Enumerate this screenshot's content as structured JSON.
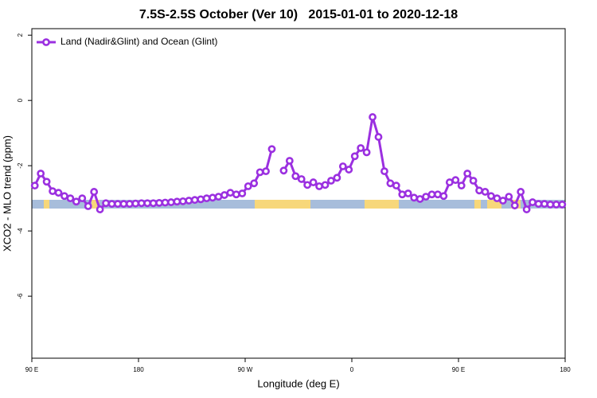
{
  "chart_data": {
    "type": "line",
    "title": "7.5S-2.5S October (Ver 10)   2015-01-01 to 2020-12-18",
    "x_label": "Longitude (deg E)",
    "y_label": "XCO2 - MLO trend (ppm)",
    "x": [
      92.5,
      97.5,
      102.5,
      107.5,
      112.5,
      117.5,
      122.5,
      127.5,
      132.5,
      137.5,
      142.5,
      147.5,
      152.5,
      157.5,
      162.5,
      167.5,
      172.5,
      177.5,
      182.5,
      187.5,
      192.5,
      197.5,
      202.5,
      207.5,
      212.5,
      217.5,
      222.5,
      227.5,
      232.5,
      237.5,
      242.5,
      247.5,
      252.5,
      257.5,
      262.5,
      267.5,
      272.5,
      277.5,
      282.5,
      287.5,
      292.5,
      297.5,
      302.5,
      307.5,
      312.5,
      317.5,
      322.5,
      327.5,
      332.5,
      337.5,
      342.5,
      347.5,
      352.5,
      357.5,
      362.5,
      367.5,
      372.5,
      377.5,
      382.5,
      387.5,
      392.5,
      397.5,
      402.5,
      407.5,
      412.5,
      417.5,
      422.5,
      427.5,
      432.5,
      437.5,
      442.5,
      447.5,
      452.5,
      457.5,
      462.5,
      467.5,
      472.5,
      477.5,
      482.5,
      487.5,
      492.5,
      497.5,
      502.5,
      507.5,
      512.5,
      517.5,
      522.5,
      527.5,
      532.5,
      537.5
    ],
    "series": [
      {
        "name": "Land (Nadir&Glint) and Ocean (Glint)",
        "color": "#9b30e0",
        "values": [
          -2.61,
          -2.24,
          -2.49,
          -2.78,
          -2.83,
          -2.93,
          -3.0,
          -3.1,
          -3.0,
          -3.24,
          -2.8,
          -3.34,
          -3.15,
          -3.17,
          -3.17,
          -3.17,
          -3.17,
          -3.16,
          -3.15,
          -3.15,
          -3.15,
          -3.14,
          -3.13,
          -3.12,
          -3.1,
          -3.09,
          -3.07,
          -3.05,
          -3.03,
          -3.0,
          -2.98,
          -2.95,
          -2.9,
          -2.83,
          -2.88,
          -2.85,
          -2.63,
          -2.54,
          -2.2,
          -2.17,
          -1.49,
          null,
          -2.15,
          -1.85,
          -2.32,
          -2.41,
          -2.59,
          -2.51,
          -2.63,
          -2.59,
          -2.46,
          -2.37,
          -2.02,
          -2.12,
          -1.71,
          -1.46,
          -1.59,
          -0.51,
          -1.12,
          -2.17,
          -2.54,
          -2.61,
          -2.88,
          -2.85,
          -2.98,
          -3.02,
          -2.95,
          -2.88,
          -2.88,
          -2.93,
          -2.51,
          -2.44,
          -2.61,
          -2.24,
          -2.46,
          -2.76,
          -2.8,
          -2.93,
          -3.0,
          -3.07,
          -2.95,
          -3.22,
          -2.8,
          -3.34,
          -3.12,
          -3.17,
          -3.17,
          -3.19,
          -3.19,
          -3.19
        ]
      }
    ],
    "xlim": [
      90,
      540
    ],
    "xticks": [
      {
        "value": 90,
        "label": "90 E"
      },
      180,
      {
        "value": 270,
        "label": "90 W"
      },
      {
        "value": 360,
        "label": "0"
      },
      {
        "value": 450,
        "label": "90 E"
      },
      {
        "value": 540,
        "label": "180"
      }
    ],
    "ylim": [
      -7.9,
      2.2
    ],
    "yticks": [
      2,
      0,
      -2,
      -4,
      -6
    ],
    "legend": "top-left"
  }
}
